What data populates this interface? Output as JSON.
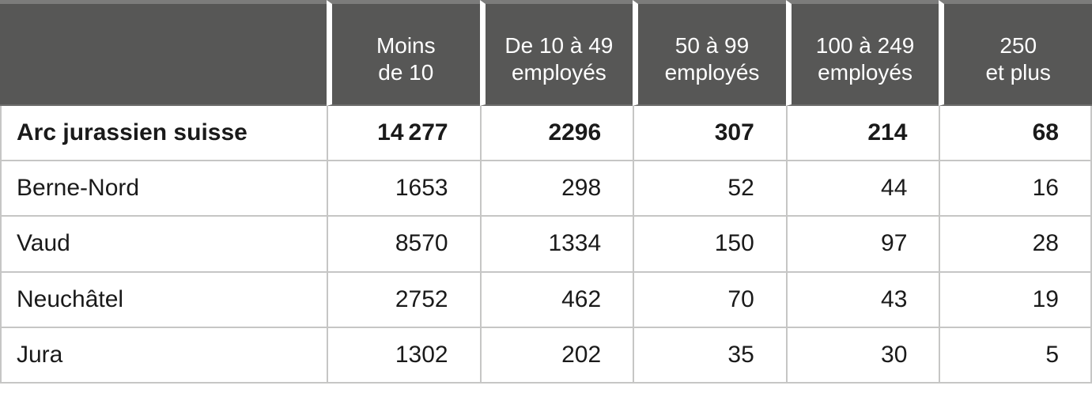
{
  "colors": {
    "header_bg": "#575756",
    "header_top_band": "#7c7c7b",
    "header_bottom_line": "#6e6e6d",
    "grid_line": "#c6c6c5",
    "header_text": "#ffffff",
    "body_text": "#1a1a1a",
    "background": "#ffffff"
  },
  "table": {
    "header": [
      {
        "line1": "Moins",
        "line2": "de 10"
      },
      {
        "line1": "De 10 à 49",
        "line2": "employés"
      },
      {
        "line1": "50 à 99",
        "line2": "employés"
      },
      {
        "line1": "100 à  249",
        "line2": "employés"
      },
      {
        "line1": "250",
        "line2": "et plus"
      }
    ],
    "rows": [
      {
        "label": "Arc jurassien suisse",
        "values": [
          "14 277",
          "2296",
          "307",
          "214",
          "68"
        ]
      },
      {
        "label": "Berne-Nord",
        "values": [
          "1653",
          "298",
          "52",
          "44",
          "16"
        ]
      },
      {
        "label": "Vaud",
        "values": [
          "8570",
          "1334",
          "150",
          "97",
          "28"
        ]
      },
      {
        "label": "Neuchâtel",
        "values": [
          "2752",
          "462",
          "70",
          "43",
          "19"
        ]
      },
      {
        "label": "Jura",
        "values": [
          "1302",
          "202",
          "35",
          "30",
          "5"
        ]
      }
    ]
  },
  "chart_data": {
    "type": "table",
    "title": "",
    "columns": [
      "",
      "Moins de 10",
      "De 10 à 49 employés",
      "50 à 99 employés",
      "100 à 249 employés",
      "250 et plus"
    ],
    "rows": [
      [
        "Arc jurassien suisse",
        14277,
        2296,
        307,
        214,
        68
      ],
      [
        "Berne-Nord",
        1653,
        298,
        52,
        44,
        16
      ],
      [
        "Vaud",
        8570,
        1334,
        150,
        97,
        28
      ],
      [
        "Neuchâtel",
        2752,
        462,
        70,
        43,
        19
      ],
      [
        "Jura",
        1302,
        202,
        35,
        30,
        5
      ]
    ],
    "notes": "Row 'Arc jurassien suisse' is the bold total row; numeric columns are company counts by employee-size class."
  }
}
